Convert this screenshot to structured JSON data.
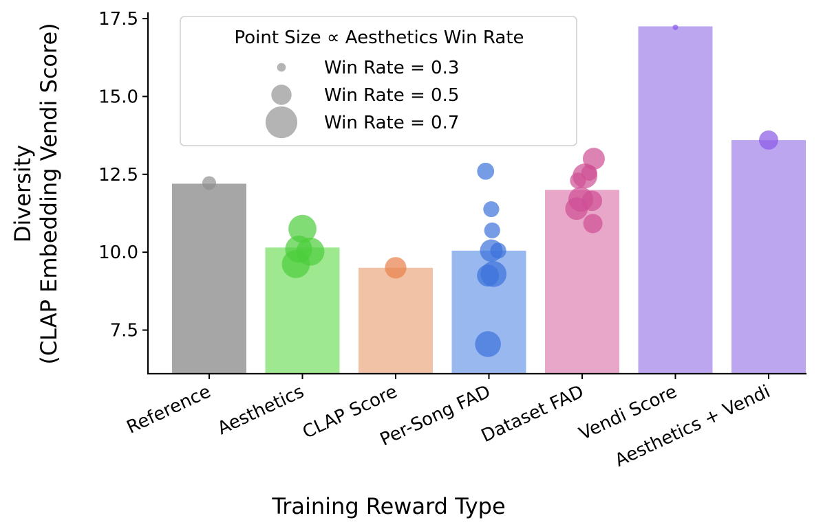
{
  "chart_data": {
    "type": "bar",
    "xlabel": "Training Reward Type",
    "ylabel_line1": "Diversity",
    "ylabel_line2": "(CLAP Embedding Vendi Score)",
    "ylim": [
      6.1,
      17.7
    ],
    "yticks": [
      7.5,
      10.0,
      12.5,
      15.0,
      17.5
    ],
    "ytick_labels": [
      "7.5",
      "10.0",
      "12.5",
      "15.0",
      "17.5"
    ],
    "grid": false,
    "categories": [
      "Reference",
      "Aesthetics",
      "CLAP Score",
      "Per-Song FAD",
      "Dataset FAD",
      "Vendi Score",
      "Aesthetics + Vendi"
    ],
    "values": [
      12.2,
      10.15,
      9.5,
      10.05,
      12.0,
      17.25,
      13.6
    ],
    "bar_colors": [
      "#a6a6a6",
      "#9ee890",
      "#f2c2a6",
      "#9ab8f0",
      "#e8a6c8",
      "#bda6f0",
      "#bda6f0"
    ],
    "point_colors": [
      "#909090",
      "#4ccd3a",
      "#e8804a",
      "#3c72dc",
      "#cf4f94",
      "#8a5ae6",
      "#8a5ae6"
    ],
    "points": [
      [
        {
          "y": 12.22,
          "win_rate": 0.4,
          "dx": 0.0
        }
      ],
      [
        {
          "y": 10.75,
          "win_rate": 0.66,
          "dx": 0.0
        },
        {
          "y": 10.1,
          "win_rate": 0.64,
          "dx": -0.08
        },
        {
          "y": 10.02,
          "win_rate": 0.66,
          "dx": 0.17
        },
        {
          "y": 9.62,
          "win_rate": 0.66,
          "dx": -0.14
        }
      ],
      [
        {
          "y": 9.5,
          "win_rate": 0.54,
          "dx": 0.0
        }
      ],
      [
        {
          "y": 12.6,
          "win_rate": 0.46,
          "dx": -0.07
        },
        {
          "y": 11.38,
          "win_rate": 0.44,
          "dx": 0.05
        },
        {
          "y": 10.7,
          "win_rate": 0.44,
          "dx": 0.07
        },
        {
          "y": 10.05,
          "win_rate": 0.44,
          "dx": 0.2
        },
        {
          "y": 10.05,
          "win_rate": 0.56,
          "dx": 0.05
        },
        {
          "y": 9.3,
          "win_rate": 0.62,
          "dx": 0.1
        },
        {
          "y": 9.25,
          "win_rate": 0.55,
          "dx": -0.02
        },
        {
          "y": 7.05,
          "win_rate": 0.62,
          "dx": -0.02
        }
      ],
      [
        {
          "y": 13.0,
          "win_rate": 0.55,
          "dx": 0.25
        },
        {
          "y": 12.55,
          "win_rate": 0.44,
          "dx": 0.15
        },
        {
          "y": 12.45,
          "win_rate": 0.6,
          "dx": 0.06
        },
        {
          "y": 12.3,
          "win_rate": 0.44,
          "dx": -0.09
        },
        {
          "y": 11.7,
          "win_rate": 0.6,
          "dx": -0.03
        },
        {
          "y": 11.65,
          "win_rate": 0.52,
          "dx": 0.21
        },
        {
          "y": 11.4,
          "win_rate": 0.56,
          "dx": -0.12
        },
        {
          "y": 10.92,
          "win_rate": 0.5,
          "dx": 0.23
        }
      ],
      [
        {
          "y": 17.22,
          "win_rate": 0.25,
          "dx": 0.0
        }
      ],
      [
        {
          "y": 13.6,
          "win_rate": 0.5,
          "dx": 0.0
        }
      ]
    ],
    "legend": {
      "title": "Point Size ∝ Aesthetics Win Rate",
      "placement": "top-left",
      "entries": [
        {
          "label": "Win Rate = 0.3",
          "win_rate": 0.3
        },
        {
          "label": "Win Rate = 0.5",
          "win_rate": 0.5
        },
        {
          "label": "Win Rate = 0.7",
          "win_rate": 0.7
        }
      ],
      "marker_color": "#b4b4b4"
    }
  }
}
